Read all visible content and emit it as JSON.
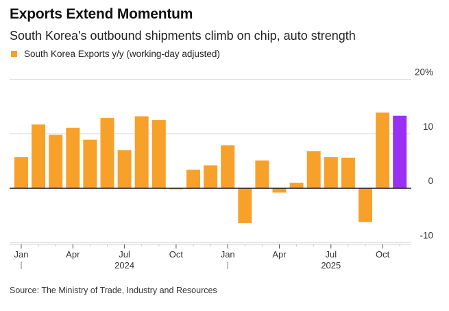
{
  "chart_data": {
    "type": "bar",
    "title": "Exports Extend Momentum",
    "subtitle": "South Korea's outbound shipments climb on chip, auto strength",
    "legend": [
      {
        "name": "South Korea Exports y/y (working-day adjusted)",
        "color": "#f7a12b"
      }
    ],
    "legend_placement": "top-left",
    "source": "Source: The Ministry of Trade, Industry and Resources",
    "ylabel": "",
    "xlabel": "",
    "ylim": [
      -10,
      20
    ],
    "yticks": [
      {
        "value": 20,
        "label": "20%"
      },
      {
        "value": 10,
        "label": "10"
      },
      {
        "value": 0,
        "label": "0"
      },
      {
        "value": -10,
        "label": "-10"
      }
    ],
    "y_axis_side": "right",
    "grid": true,
    "categories": [
      "Jan 2024",
      "Feb 2024",
      "Mar 2024",
      "Apr 2024",
      "May 2024",
      "Jun 2024",
      "Jul 2024",
      "Aug 2024",
      "Sep 2024",
      "Oct 2024",
      "Nov 2024",
      "Dec 2024",
      "Jan 2025",
      "Feb 2025",
      "Mar 2025",
      "Apr 2025",
      "May 2025",
      "Jun 2025",
      "Jul 2025",
      "Aug 2025",
      "Sep 2025",
      "Oct 2025",
      "Nov 2025"
    ],
    "series": [
      {
        "name": "South Korea Exports y/y (working-day adjusted)",
        "values": [
          5.7,
          11.7,
          9.8,
          11.1,
          8.9,
          12.9,
          7.0,
          13.2,
          12.5,
          -0.2,
          3.4,
          4.2,
          7.9,
          -6.4,
          5.1,
          -0.8,
          1.0,
          6.8,
          5.7,
          5.6,
          -6.2,
          13.9,
          13.3
        ],
        "color": "#f7a12b",
        "highlight_color": "#9b30f5",
        "highlight_index": 22
      }
    ],
    "xticks": [
      {
        "index": 0,
        "label": "Jan"
      },
      {
        "index": 3,
        "label": "Apr"
      },
      {
        "index": 6,
        "label": "Jul"
      },
      {
        "index": 9,
        "label": "Oct"
      },
      {
        "index": 12,
        "label": "Jan"
      },
      {
        "index": 15,
        "label": "Apr"
      },
      {
        "index": 18,
        "label": "Jul"
      },
      {
        "index": 21,
        "label": "Oct"
      }
    ],
    "year_labels": [
      {
        "index": 6,
        "label": "2024"
      },
      {
        "index": 18,
        "label": "2025"
      }
    ]
  }
}
